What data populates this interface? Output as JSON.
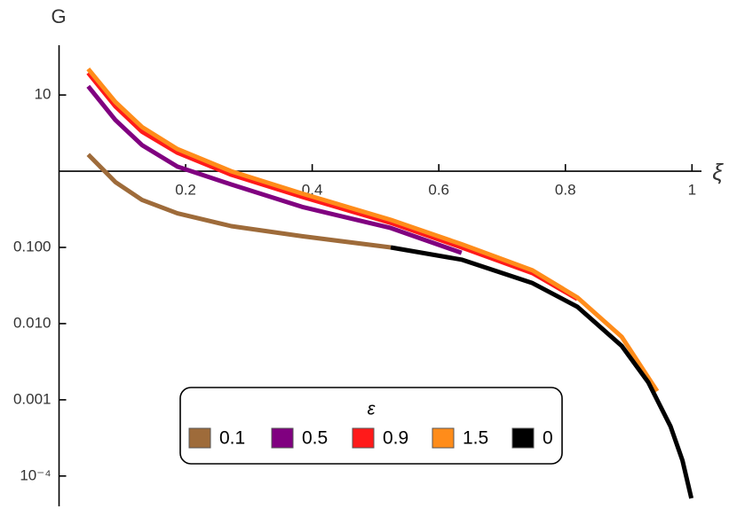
{
  "chart_data": {
    "type": "line",
    "y_label": "G",
    "x_label": "ξ",
    "log_y": true,
    "xlim": [
      0,
      1.015
    ],
    "ylim": [
      4e-05,
      45
    ],
    "xticks": [
      0.2,
      0.4,
      0.6,
      0.8,
      1.0
    ],
    "yticks": [
      10,
      {
        "value": 0.1,
        "label": "0.100"
      },
      {
        "value": 0.01,
        "label": "0.010"
      },
      {
        "value": 0.001,
        "label": "0.001"
      },
      {
        "value": 0.0001,
        "label": "10⁻⁴"
      }
    ],
    "legend_title": "ε",
    "legend_position": "bottom",
    "series": [
      {
        "name": "0.1",
        "color": "#9e6b3a",
        "x": [
          0.046,
          0.089,
          0.131,
          0.187,
          0.272,
          0.384,
          0.524
        ],
        "values": [
          1.66,
          0.72,
          0.42,
          0.28,
          0.19,
          0.14,
          0.1
        ]
      },
      {
        "name": "0.5",
        "color": "#800080",
        "x": [
          0.046,
          0.089,
          0.131,
          0.187,
          0.272,
          0.384,
          0.524,
          0.636
        ],
        "values": [
          13,
          4.7,
          2.2,
          1.15,
          0.67,
          0.34,
          0.18,
          0.085
        ]
      },
      {
        "name": "0.9",
        "color": "#ff1a1a",
        "x": [
          0.046,
          0.089,
          0.131,
          0.187,
          0.272,
          0.384,
          0.524,
          0.636,
          0.748,
          0.819
        ],
        "values": [
          19.5,
          7.1,
          3.3,
          1.75,
          0.9,
          0.46,
          0.21,
          0.1,
          0.046,
          0.021
        ]
      },
      {
        "name": "1.5",
        "color": "#ff8c1a",
        "x": [
          0.046,
          0.089,
          0.131,
          0.187,
          0.272,
          0.384,
          0.524,
          0.636,
          0.748,
          0.819,
          0.889,
          0.945
        ],
        "values": [
          22,
          8.1,
          3.8,
          1.95,
          1.0,
          0.51,
          0.23,
          0.11,
          0.05,
          0.022,
          0.0067,
          0.0013
        ]
      },
      {
        "name": "0",
        "color": "#000000",
        "x": [
          0.524,
          0.636,
          0.748,
          0.819,
          0.889,
          0.931,
          0.966,
          0.985,
          0.999
        ],
        "values": [
          0.1,
          0.069,
          0.034,
          0.0166,
          0.0051,
          0.0017,
          0.00045,
          0.00016,
          5.1e-05
        ]
      }
    ]
  }
}
